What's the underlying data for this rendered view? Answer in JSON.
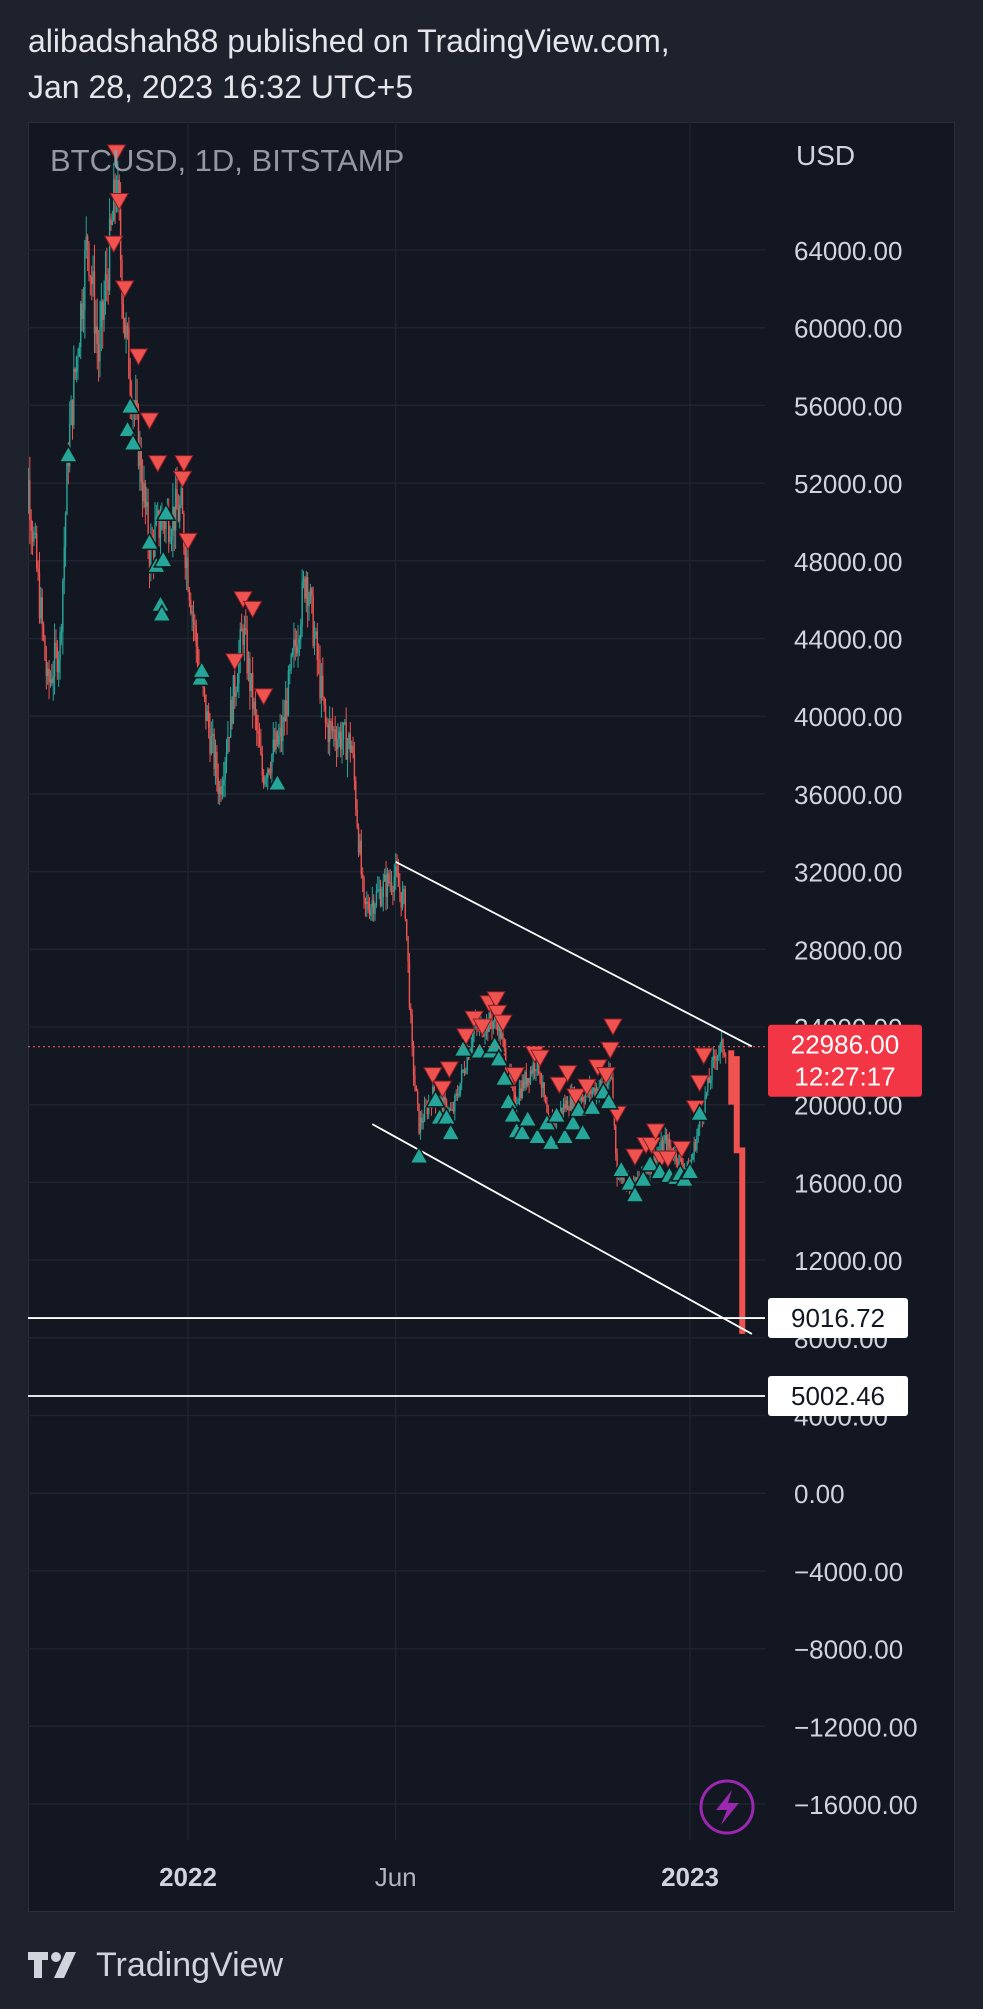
{
  "header": {
    "line1": "alibadshah88 published on TradingView.com,",
    "line2": "Jan 28, 2023 16:32 UTC+5"
  },
  "symbol": "BTCUSD, 1D, BITSTAMP",
  "currency": "USD",
  "footer": {
    "brand": "TradingView"
  },
  "icons": {
    "logo": "tradingview-logo-icon",
    "flash": "lightning-icon"
  },
  "colors": {
    "up": "#26a69a",
    "down": "#ef5350",
    "price_tag": "#f23645",
    "line": "#ffffff",
    "flash": "#9c27b0"
  },
  "chart_data": {
    "type": "candlestick",
    "symbol": "BTCUSD",
    "interval": "1D",
    "exchange": "BITSTAMP",
    "ylim": [
      -18000,
      69000
    ],
    "y_ticks": [
      64000,
      60000,
      56000,
      52000,
      48000,
      44000,
      40000,
      36000,
      32000,
      28000,
      24000,
      20000,
      16000,
      12000,
      8000,
      4000,
      0,
      -4000,
      -8000,
      -12000,
      -16000
    ],
    "y_tick_labels": [
      "64000.00",
      "60000.00",
      "56000.00",
      "52000.00",
      "48000.00",
      "44000.00",
      "40000.00",
      "36000.00",
      "32000.00",
      "28000.00",
      "24000.00",
      "20000.00",
      "16000.00",
      "12000.00",
      "8000.00",
      "4000.00",
      "0.00",
      "−4000.00",
      "−8000.00",
      "−12000.00",
      "−16000.00"
    ],
    "x_ticks": [
      {
        "label": "2022",
        "date": "2022-01-01"
      },
      {
        "label": "Jun",
        "date": "2022-06-01"
      },
      {
        "label": "2023",
        "date": "2023-01-01"
      }
    ],
    "x_range": [
      "2021-09-01",
      "2023-03-01"
    ],
    "price_path": [
      [
        "2021-09-01",
        48000
      ],
      [
        "2021-09-07",
        52000
      ],
      [
        "2021-09-21",
        41500
      ],
      [
        "2021-09-30",
        43800
      ],
      [
        "2021-10-06",
        53800
      ],
      [
        "2021-10-20",
        64800
      ],
      [
        "2021-10-28",
        58500
      ],
      [
        "2021-11-10",
        67500
      ],
      [
        "2021-11-16",
        60000
      ],
      [
        "2021-11-26",
        54000
      ],
      [
        "2021-12-04",
        48500
      ],
      [
        "2021-12-12",
        50000
      ],
      [
        "2021-12-27",
        50600
      ],
      [
        "2022-01-10",
        41800
      ],
      [
        "2022-01-24",
        36200
      ],
      [
        "2022-02-10",
        44500
      ],
      [
        "2022-02-24",
        37000
      ],
      [
        "2022-03-10",
        39000
      ],
      [
        "2022-03-28",
        47400
      ],
      [
        "2022-04-11",
        39500
      ],
      [
        "2022-04-30",
        38500
      ],
      [
        "2022-05-09",
        30000
      ],
      [
        "2022-05-15",
        30500
      ],
      [
        "2022-05-31",
        31800
      ],
      [
        "2022-06-08",
        30200
      ],
      [
        "2022-06-13",
        22500
      ],
      [
        "2022-06-18",
        18900
      ],
      [
        "2022-06-28",
        20500
      ],
      [
        "2022-07-12",
        19500
      ],
      [
        "2022-07-28",
        23900
      ],
      [
        "2022-08-14",
        24400
      ],
      [
        "2022-08-26",
        20200
      ],
      [
        "2022-09-12",
        22400
      ],
      [
        "2022-09-20",
        18900
      ],
      [
        "2022-10-05",
        20200
      ],
      [
        "2022-10-25",
        20800
      ],
      [
        "2022-11-05",
        21300
      ],
      [
        "2022-11-09",
        16500
      ],
      [
        "2022-11-21",
        15800
      ],
      [
        "2022-12-14",
        18100
      ],
      [
        "2022-12-31",
        16550
      ],
      [
        "2023-01-14",
        20900
      ],
      [
        "2023-01-20",
        22700
      ],
      [
        "2023-01-27",
        22986
      ]
    ],
    "series": [
      {
        "name": "",
        "kind": "trend-line",
        "from": [
          "2022-06-01",
          32500
        ],
        "to": [
          "2023-02-15",
          23000
        ]
      },
      {
        "name": "",
        "kind": "trend-line",
        "from": [
          "2022-05-15",
          19000
        ],
        "to": [
          "2023-02-15",
          8200
        ]
      },
      {
        "name": "",
        "kind": "horizontal-line",
        "value": 9016.72
      },
      {
        "name": "",
        "kind": "horizontal-line",
        "value": 5002.46
      }
    ],
    "projected_drop": [
      [
        "2023-01-31",
        22800,
        20000
      ],
      [
        "2023-02-04",
        22500,
        17500
      ],
      [
        "2023-02-08",
        17800,
        8200
      ]
    ],
    "sell_signals": [
      [
        "2021-11-10",
        69000
      ],
      [
        "2021-11-12",
        66500
      ],
      [
        "2021-11-08",
        64300
      ],
      [
        "2021-11-16",
        62000
      ],
      [
        "2021-11-26",
        58500
      ],
      [
        "2021-12-04",
        55200
      ],
      [
        "2021-12-10",
        53000
      ],
      [
        "2021-12-28",
        52200
      ],
      [
        "2021-12-29",
        53000
      ],
      [
        "2022-01-01",
        49000
      ],
      [
        "2022-02-10",
        46000
      ],
      [
        "2022-02-17",
        45500
      ],
      [
        "2022-02-04",
        42800
      ],
      [
        "2022-02-25",
        41000
      ],
      [
        "2022-06-28",
        21500
      ],
      [
        "2022-07-05",
        20800
      ],
      [
        "2022-07-10",
        21800
      ],
      [
        "2022-07-22",
        23500
      ],
      [
        "2022-07-28",
        24400
      ],
      [
        "2022-08-03",
        24000
      ],
      [
        "2022-08-08",
        25200
      ],
      [
        "2022-08-13",
        25400
      ],
      [
        "2022-08-14",
        24700
      ],
      [
        "2022-08-18",
        24200
      ],
      [
        "2022-08-27",
        21500
      ],
      [
        "2022-09-10",
        22600
      ],
      [
        "2022-09-14",
        22400
      ],
      [
        "2022-09-28",
        21000
      ],
      [
        "2022-10-04",
        21600
      ],
      [
        "2022-10-10",
        20400
      ],
      [
        "2022-10-18",
        20900
      ],
      [
        "2022-10-26",
        21900
      ],
      [
        "2022-11-01",
        21500
      ],
      [
        "2022-11-06",
        24000
      ],
      [
        "2022-11-04",
        22800
      ],
      [
        "2022-11-09",
        19500
      ],
      [
        "2022-11-22",
        17300
      ],
      [
        "2022-11-30",
        17900
      ],
      [
        "2022-12-04",
        17900
      ],
      [
        "2022-12-07",
        18600
      ],
      [
        "2022-12-11",
        17200
      ],
      [
        "2022-12-16",
        17200
      ],
      [
        "2022-12-26",
        17700
      ],
      [
        "2023-01-05",
        19800
      ],
      [
        "2023-01-08",
        21100
      ],
      [
        "2023-01-11",
        22500
      ]
    ],
    "buy_signals": [
      [
        "2021-10-06",
        53500
      ],
      [
        "2021-11-18",
        54800
      ],
      [
        "2021-11-20",
        56000
      ],
      [
        "2021-11-22",
        54100
      ],
      [
        "2021-12-04",
        49000
      ],
      [
        "2021-12-09",
        47800
      ],
      [
        "2021-12-12",
        45800
      ],
      [
        "2021-12-13",
        45300
      ],
      [
        "2021-12-14",
        48100
      ],
      [
        "2021-12-16",
        50500
      ],
      [
        "2022-01-10",
        42000
      ],
      [
        "2022-01-11",
        42400
      ],
      [
        "2022-03-07",
        36600
      ],
      [
        "2022-06-18",
        17400
      ],
      [
        "2022-06-30",
        20300
      ],
      [
        "2022-07-03",
        19400
      ],
      [
        "2022-07-08",
        19400
      ],
      [
        "2022-07-11",
        18600
      ],
      [
        "2022-07-20",
        22900
      ],
      [
        "2022-08-01",
        22800
      ],
      [
        "2022-08-09",
        22800
      ],
      [
        "2022-08-12",
        23100
      ],
      [
        "2022-08-15",
        22400
      ],
      [
        "2022-08-19",
        21400
      ],
      [
        "2022-08-22",
        20200
      ],
      [
        "2022-08-25",
        19500
      ],
      [
        "2022-08-28",
        18700
      ],
      [
        "2022-09-01",
        18600
      ],
      [
        "2022-09-05",
        19300
      ],
      [
        "2022-09-12",
        18400
      ],
      [
        "2022-09-19",
        19100
      ],
      [
        "2022-09-22",
        18100
      ],
      [
        "2022-09-26",
        19500
      ],
      [
        "2022-10-02",
        18400
      ],
      [
        "2022-10-08",
        19100
      ],
      [
        "2022-10-12",
        19800
      ],
      [
        "2022-10-15",
        18600
      ],
      [
        "2022-10-22",
        19900
      ],
      [
        "2022-10-30",
        20700
      ],
      [
        "2022-11-03",
        20200
      ],
      [
        "2022-11-12",
        16700
      ],
      [
        "2022-11-18",
        16000
      ],
      [
        "2022-11-22",
        15400
      ],
      [
        "2022-11-28",
        16200
      ],
      [
        "2022-12-03",
        17000
      ],
      [
        "2022-12-10",
        16600
      ],
      [
        "2022-12-17",
        16400
      ],
      [
        "2022-12-22",
        16300
      ],
      [
        "2022-12-25",
        16500
      ],
      [
        "2022-12-28",
        16200
      ],
      [
        "2023-01-01",
        16600
      ],
      [
        "2023-01-08",
        19600
      ]
    ],
    "last_price": 22986.0,
    "last_price_label": "22986.00",
    "countdown": "12:27:17",
    "line_labels": [
      "9016.72",
      "5002.46"
    ]
  }
}
